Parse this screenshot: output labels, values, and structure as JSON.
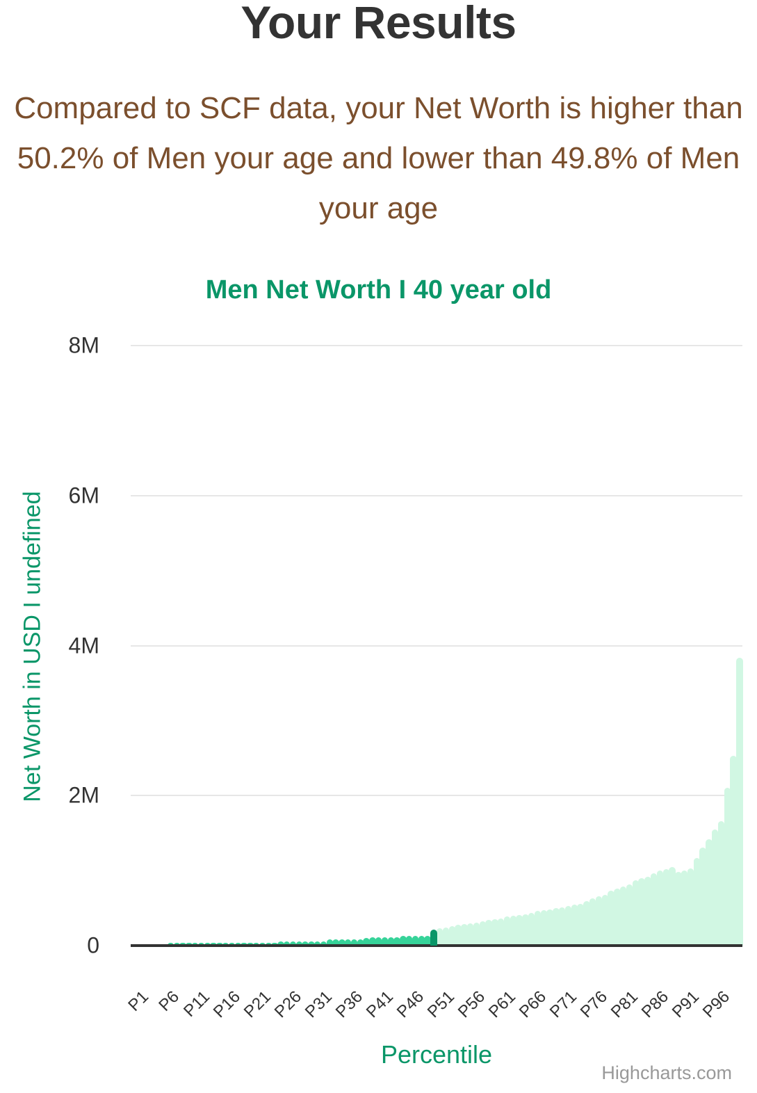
{
  "header": {
    "title": "Your Results",
    "summary": "Compared to SCF data, your Net Worth is higher than 50.2% of Men your age and lower than 49.8% of Men your age"
  },
  "colors": {
    "title": "#333333",
    "summary": "#7b4f2d",
    "accent": "#0a9668",
    "bar_below": "#36d399",
    "bar_user": "#0a9668",
    "bar_above": "#d1f7e3",
    "grid": "#e6e6e6",
    "credits": "#999999"
  },
  "credits": "Highcharts.com",
  "chart_data": {
    "type": "bar",
    "title": "Men Net Worth I 40 year old",
    "xlabel": "Percentile",
    "ylabel": "Net Worth in USD I undefined",
    "ylim": [
      0,
      8000000
    ],
    "yticks": [
      {
        "value": 0,
        "label": "0"
      },
      {
        "value": 2000000,
        "label": "2M"
      },
      {
        "value": 4000000,
        "label": "4M"
      },
      {
        "value": 6000000,
        "label": "6M"
      },
      {
        "value": 8000000,
        "label": "8M"
      }
    ],
    "xtick_labels": [
      "P1",
      "P6",
      "P11",
      "P16",
      "P21",
      "P26",
      "P31",
      "P36",
      "P41",
      "P46",
      "P51",
      "P56",
      "P61",
      "P66",
      "P71",
      "P76",
      "P81",
      "P86",
      "P91",
      "P96"
    ],
    "grid": true,
    "legend": false,
    "highlight_index": 49,
    "highlight_label": "P50",
    "categories": [
      "P1",
      "P2",
      "P3",
      "P4",
      "P5",
      "P6",
      "P7",
      "P8",
      "P9",
      "P10",
      "P11",
      "P12",
      "P13",
      "P14",
      "P15",
      "P16",
      "P17",
      "P18",
      "P19",
      "P20",
      "P21",
      "P22",
      "P23",
      "P24",
      "P25",
      "P26",
      "P27",
      "P28",
      "P29",
      "P30",
      "P31",
      "P32",
      "P33",
      "P34",
      "P35",
      "P36",
      "P37",
      "P38",
      "P39",
      "P40",
      "P41",
      "P42",
      "P43",
      "P44",
      "P45",
      "P46",
      "P47",
      "P48",
      "P49",
      "P50",
      "P51",
      "P52",
      "P53",
      "P54",
      "P55",
      "P56",
      "P57",
      "P58",
      "P59",
      "P60",
      "P61",
      "P62",
      "P63",
      "P64",
      "P65",
      "P66",
      "P67",
      "P68",
      "P69",
      "P70",
      "P71",
      "P72",
      "P73",
      "P74",
      "P75",
      "P76",
      "P77",
      "P78",
      "P79",
      "P80",
      "P81",
      "P82",
      "P83",
      "P84",
      "P85",
      "P86",
      "P87",
      "P88",
      "P89",
      "P90",
      "P91",
      "P92",
      "P93",
      "P94",
      "P95",
      "P96",
      "P97",
      "P98",
      "P99",
      "P100"
    ],
    "values": [
      0,
      0,
      0,
      0,
      0,
      0,
      8000,
      8000,
      8000,
      8000,
      8000,
      8000,
      8000,
      25000,
      30000,
      30000,
      30000,
      30000,
      30000,
      30000,
      30000,
      30000,
      30000,
      30000,
      55000,
      55000,
      55000,
      55000,
      55000,
      55000,
      55000,
      60000,
      85000,
      85000,
      85000,
      85000,
      85000,
      85000,
      100000,
      110000,
      110000,
      110000,
      110000,
      110000,
      130000,
      130000,
      130000,
      130000,
      130000,
      210000,
      230000,
      245000,
      260000,
      275000,
      290000,
      300000,
      310000,
      325000,
      340000,
      350000,
      365000,
      385000,
      400000,
      410000,
      420000,
      440000,
      460000,
      470000,
      480000,
      500000,
      510000,
      525000,
      545000,
      560000,
      590000,
      630000,
      660000,
      680000,
      730000,
      760000,
      790000,
      820000,
      870000,
      900000,
      920000,
      960000,
      1000000,
      1020000,
      1050000,
      980000,
      1000000,
      1030000,
      1170000,
      1310000,
      1420000,
      1550000,
      1660000,
      2100000,
      2530000,
      3840000
    ]
  }
}
